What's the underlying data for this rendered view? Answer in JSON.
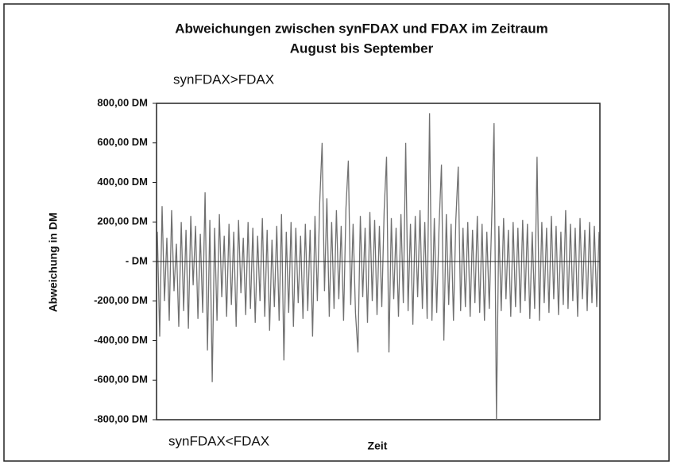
{
  "chart_data": {
    "type": "line",
    "title": [
      "Abweichungen zwischen synFDAX und FDAX im Zeitraum",
      "August bis September"
    ],
    "annotations": [
      "synFDAX>FDAX",
      "synFDAX<FDAX"
    ],
    "xlabel": "Zeit",
    "ylabel": "Abweichung in DM",
    "color": "#707070",
    "ylim": [
      -800,
      800
    ],
    "yticks": [
      {
        "value": 800,
        "label": "800,00 DM"
      },
      {
        "value": 600,
        "label": "600,00 DM"
      },
      {
        "value": 400,
        "label": "400,00 DM"
      },
      {
        "value": 200,
        "label": "200,00 DM"
      },
      {
        "value": 0,
        "label": "-     DM"
      },
      {
        "value": -200,
        "label": "-200,00 DM"
      },
      {
        "value": -400,
        "label": "-400,00 DM"
      },
      {
        "value": -600,
        "label": "-600,00 DM"
      },
      {
        "value": -800,
        "label": "-800,00 DM"
      }
    ],
    "values": [
      150,
      -380,
      280,
      -200,
      120,
      -300,
      260,
      -150,
      90,
      -330,
      200,
      -250,
      160,
      -340,
      230,
      -120,
      180,
      -290,
      140,
      -260,
      350,
      -450,
      210,
      -610,
      170,
      -300,
      240,
      -180,
      130,
      -280,
      190,
      -220,
      150,
      -330,
      210,
      -160,
      120,
      -270,
      200,
      -240,
      170,
      -310,
      130,
      -200,
      220,
      -280,
      160,
      -350,
      110,
      -230,
      180,
      -300,
      240,
      -500,
      150,
      -260,
      200,
      -330,
      170,
      -210,
      130,
      -290,
      190,
      -250,
      160,
      -380,
      230,
      -200,
      300,
      600,
      -150,
      320,
      -280,
      200,
      -240,
      260,
      -190,
      180,
      -300,
      270,
      510,
      -220,
      190,
      -260,
      -460,
      230,
      -180,
      170,
      -310,
      250,
      -200,
      210,
      -270,
      180,
      -230,
      260,
      530,
      -460,
      220,
      -190,
      170,
      -280,
      240,
      -210,
      600,
      -250,
      190,
      -320,
      230,
      -180,
      260,
      -240,
      200,
      -290,
      750,
      -300,
      220,
      -260,
      180,
      490,
      -400,
      240,
      -220,
      190,
      -300,
      210,
      480,
      -250,
      170,
      -230,
      200,
      -280,
      160,
      -210,
      230,
      -260,
      190,
      -300,
      150,
      -240,
      210,
      700,
      -800,
      180,
      -250,
      220,
      -190,
      160,
      -280,
      200,
      -230,
      170,
      -260,
      210,
      -200,
      190,
      -290,
      150,
      -240,
      530,
      -300,
      200,
      -210,
      170,
      -260,
      230,
      -190,
      180,
      -270,
      150,
      -220,
      260,
      -240,
      190,
      -200,
      170,
      -280,
      220,
      -190,
      160,
      -250,
      200,
      -210,
      180,
      -230,
      150
    ]
  }
}
